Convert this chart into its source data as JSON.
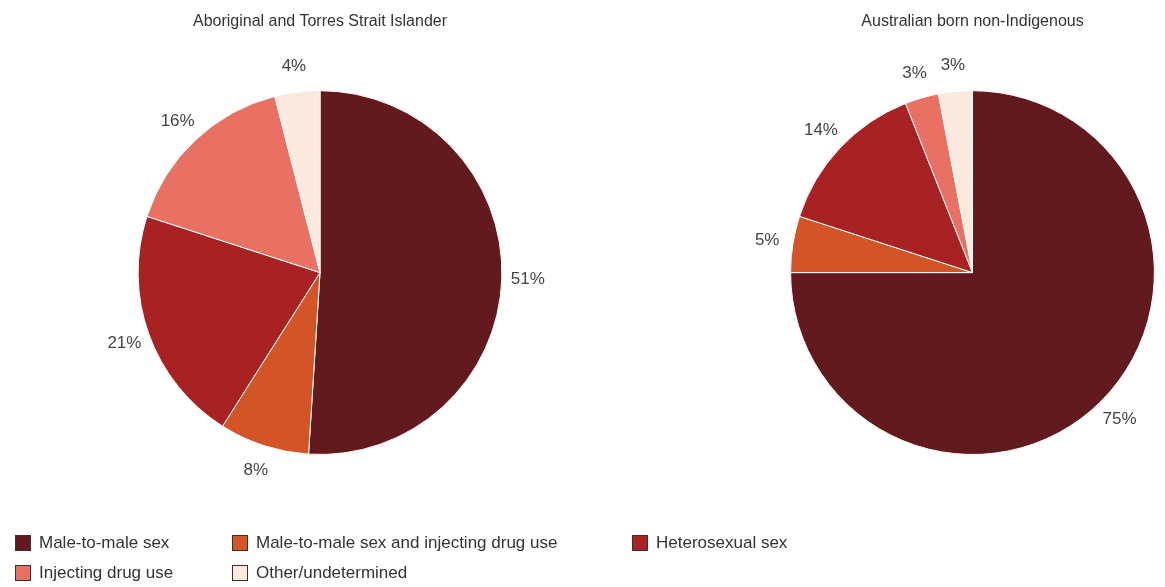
{
  "chart_data": [
    {
      "type": "pie",
      "title": "Aboriginal and Torres Strait Islander",
      "categories": [
        "Male-to-male sex",
        "Male-to-male sex and injecting drug use",
        "Heterosexual sex",
        "Injecting drug use",
        "Other/undetermined"
      ],
      "values": [
        51,
        8,
        21,
        16,
        4
      ],
      "value_labels": [
        "51%",
        "8%",
        "21%",
        "16%",
        "4%"
      ],
      "colors": [
        "#621a1f",
        "#d35427",
        "#a82224",
        "#e87163",
        "#fbe8df"
      ],
      "legend": "bottom"
    },
    {
      "type": "pie",
      "title": "Australian born non-Indigenous",
      "categories": [
        null,
        null,
        null,
        null,
        null
      ],
      "values": [
        75,
        5,
        14,
        3,
        3
      ],
      "value_labels": [
        "75%",
        "5%",
        "14%",
        "3%",
        "3%"
      ],
      "colors": [
        "#621a1f",
        "#d35427",
        "#a82224",
        "#e87163",
        "#fbe8df"
      ]
    }
  ]
}
